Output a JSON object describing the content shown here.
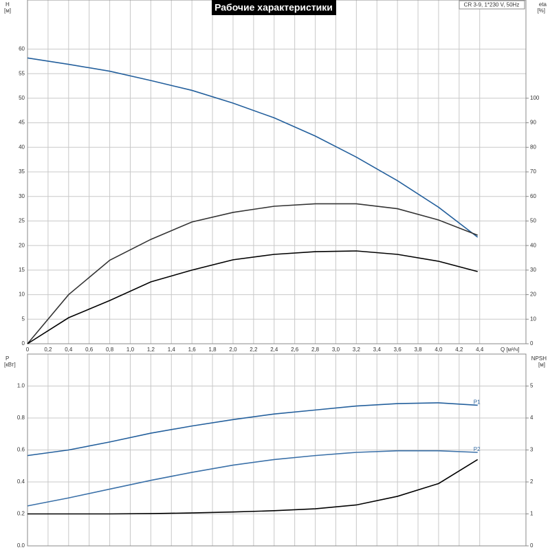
{
  "chart_data": [
    {
      "type": "line",
      "title": "Рабочие характеристики",
      "annotation": "CR 3-9, 1*230 V, 50Hz",
      "ylabel": "H",
      "yunit": "[м]",
      "y2label": "eta",
      "y2unit": "[%]",
      "xlabel": "Q [м³/ч]",
      "x": [
        0,
        0.4,
        0.8,
        1.2,
        1.6,
        2.0,
        2.4,
        2.8,
        3.2,
        3.6,
        4.0,
        4.38
      ],
      "xlim": [
        0,
        4.85
      ],
      "xticks": [
        0,
        {
          "value": 0.2,
          "label": "0,2"
        },
        {
          "value": 0.4,
          "label": "0,4"
        },
        {
          "value": 0.6,
          "label": "0,6"
        },
        {
          "value": 0.8,
          "label": "0,8"
        },
        {
          "value": 1.0,
          "label": "1,0"
        },
        {
          "value": 1.2,
          "label": "1,2"
        },
        {
          "value": 1.4,
          "label": "1,4"
        },
        {
          "value": 1.6,
          "label": "1,6"
        },
        {
          "value": 1.8,
          "label": "1,8"
        },
        {
          "value": 2.0,
          "label": "2,0"
        },
        {
          "value": 2.2,
          "label": "2,2"
        },
        {
          "value": 2.4,
          "label": "2,4"
        },
        {
          "value": 2.6,
          "label": "2,6"
        },
        {
          "value": 2.8,
          "label": "2,8"
        },
        {
          "value": 3.0,
          "label": "3,0"
        },
        {
          "value": 3.2,
          "label": "3,2"
        },
        {
          "value": 3.4,
          "label": "3,4"
        },
        {
          "value": 3.6,
          "label": "3,6"
        },
        {
          "value": 3.8,
          "label": "3,8"
        },
        {
          "value": 4.0,
          "label": "4,0"
        },
        {
          "value": 4.2,
          "label": "4,2"
        },
        {
          "value": 4.4,
          "label": "4,4"
        }
      ],
      "ylim": [
        0,
        70
      ],
      "yticks": [
        0,
        5,
        10,
        15,
        20,
        25,
        30,
        35,
        40,
        45,
        50,
        55,
        60
      ],
      "y2lim": [
        0,
        140
      ],
      "y2ticks": [
        0,
        10,
        20,
        30,
        40,
        50,
        60,
        70,
        80,
        90,
        100
      ],
      "grid": true,
      "series": [
        {
          "color": "#235f9c",
          "values": [
            58.2,
            56.9,
            55.5,
            53.6,
            51.6,
            49.0,
            46.0,
            42.3,
            38.0,
            33.2,
            27.8,
            21.7
          ]
        },
        {
          "color": "#333333",
          "axis": "y2",
          "values": [
            0,
            20,
            34,
            42.5,
            49.6,
            53.5,
            56,
            57,
            57,
            55,
            50.4,
            44.2
          ]
        },
        {
          "color": "#000000",
          "axis": "y2",
          "values": [
            0,
            10.6,
            17.6,
            25.2,
            30,
            34.2,
            36.4,
            37.5,
            37.8,
            36.4,
            33.6,
            29.4
          ]
        }
      ]
    },
    {
      "type": "line",
      "ylabel": "P",
      "yunit": "[кВт]",
      "y2label": "NPSH",
      "y2unit": "[м]",
      "x": [
        0,
        0.4,
        0.8,
        1.2,
        1.6,
        2.0,
        2.4,
        2.8,
        3.2,
        3.6,
        4.0,
        4.38
      ],
      "xlim": [
        0,
        4.85
      ],
      "ylim": [
        0,
        1.2
      ],
      "yticks": [
        {
          "value": 0,
          "label": "0.0"
        },
        {
          "value": 0.2,
          "label": "0.2"
        },
        {
          "value": 0.4,
          "label": "0.4"
        },
        {
          "value": 0.6,
          "label": "0.6"
        },
        {
          "value": 0.8,
          "label": "0.8"
        },
        {
          "value": 1.0,
          "label": "1.0"
        }
      ],
      "y2lim": [
        0,
        6
      ],
      "y2ticks": [
        0,
        1,
        2,
        3,
        4,
        5
      ],
      "grid": true,
      "series": [
        {
          "name": "P1",
          "color": "#235f9c",
          "values": [
            0.565,
            0.6,
            0.65,
            0.705,
            0.75,
            0.79,
            0.825,
            0.85,
            0.875,
            0.89,
            0.895,
            0.88
          ]
        },
        {
          "name": "P2",
          "color": "#3a70a8",
          "values": [
            0.25,
            0.3,
            0.355,
            0.41,
            0.46,
            0.505,
            0.54,
            0.565,
            0.585,
            0.595,
            0.595,
            0.585
          ]
        },
        {
          "color": "#000000",
          "axis": "y2",
          "values": [
            1.0,
            1.0,
            1.0,
            1.01,
            1.03,
            1.06,
            1.1,
            1.16,
            1.28,
            1.55,
            1.95,
            2.7
          ]
        }
      ]
    }
  ]
}
